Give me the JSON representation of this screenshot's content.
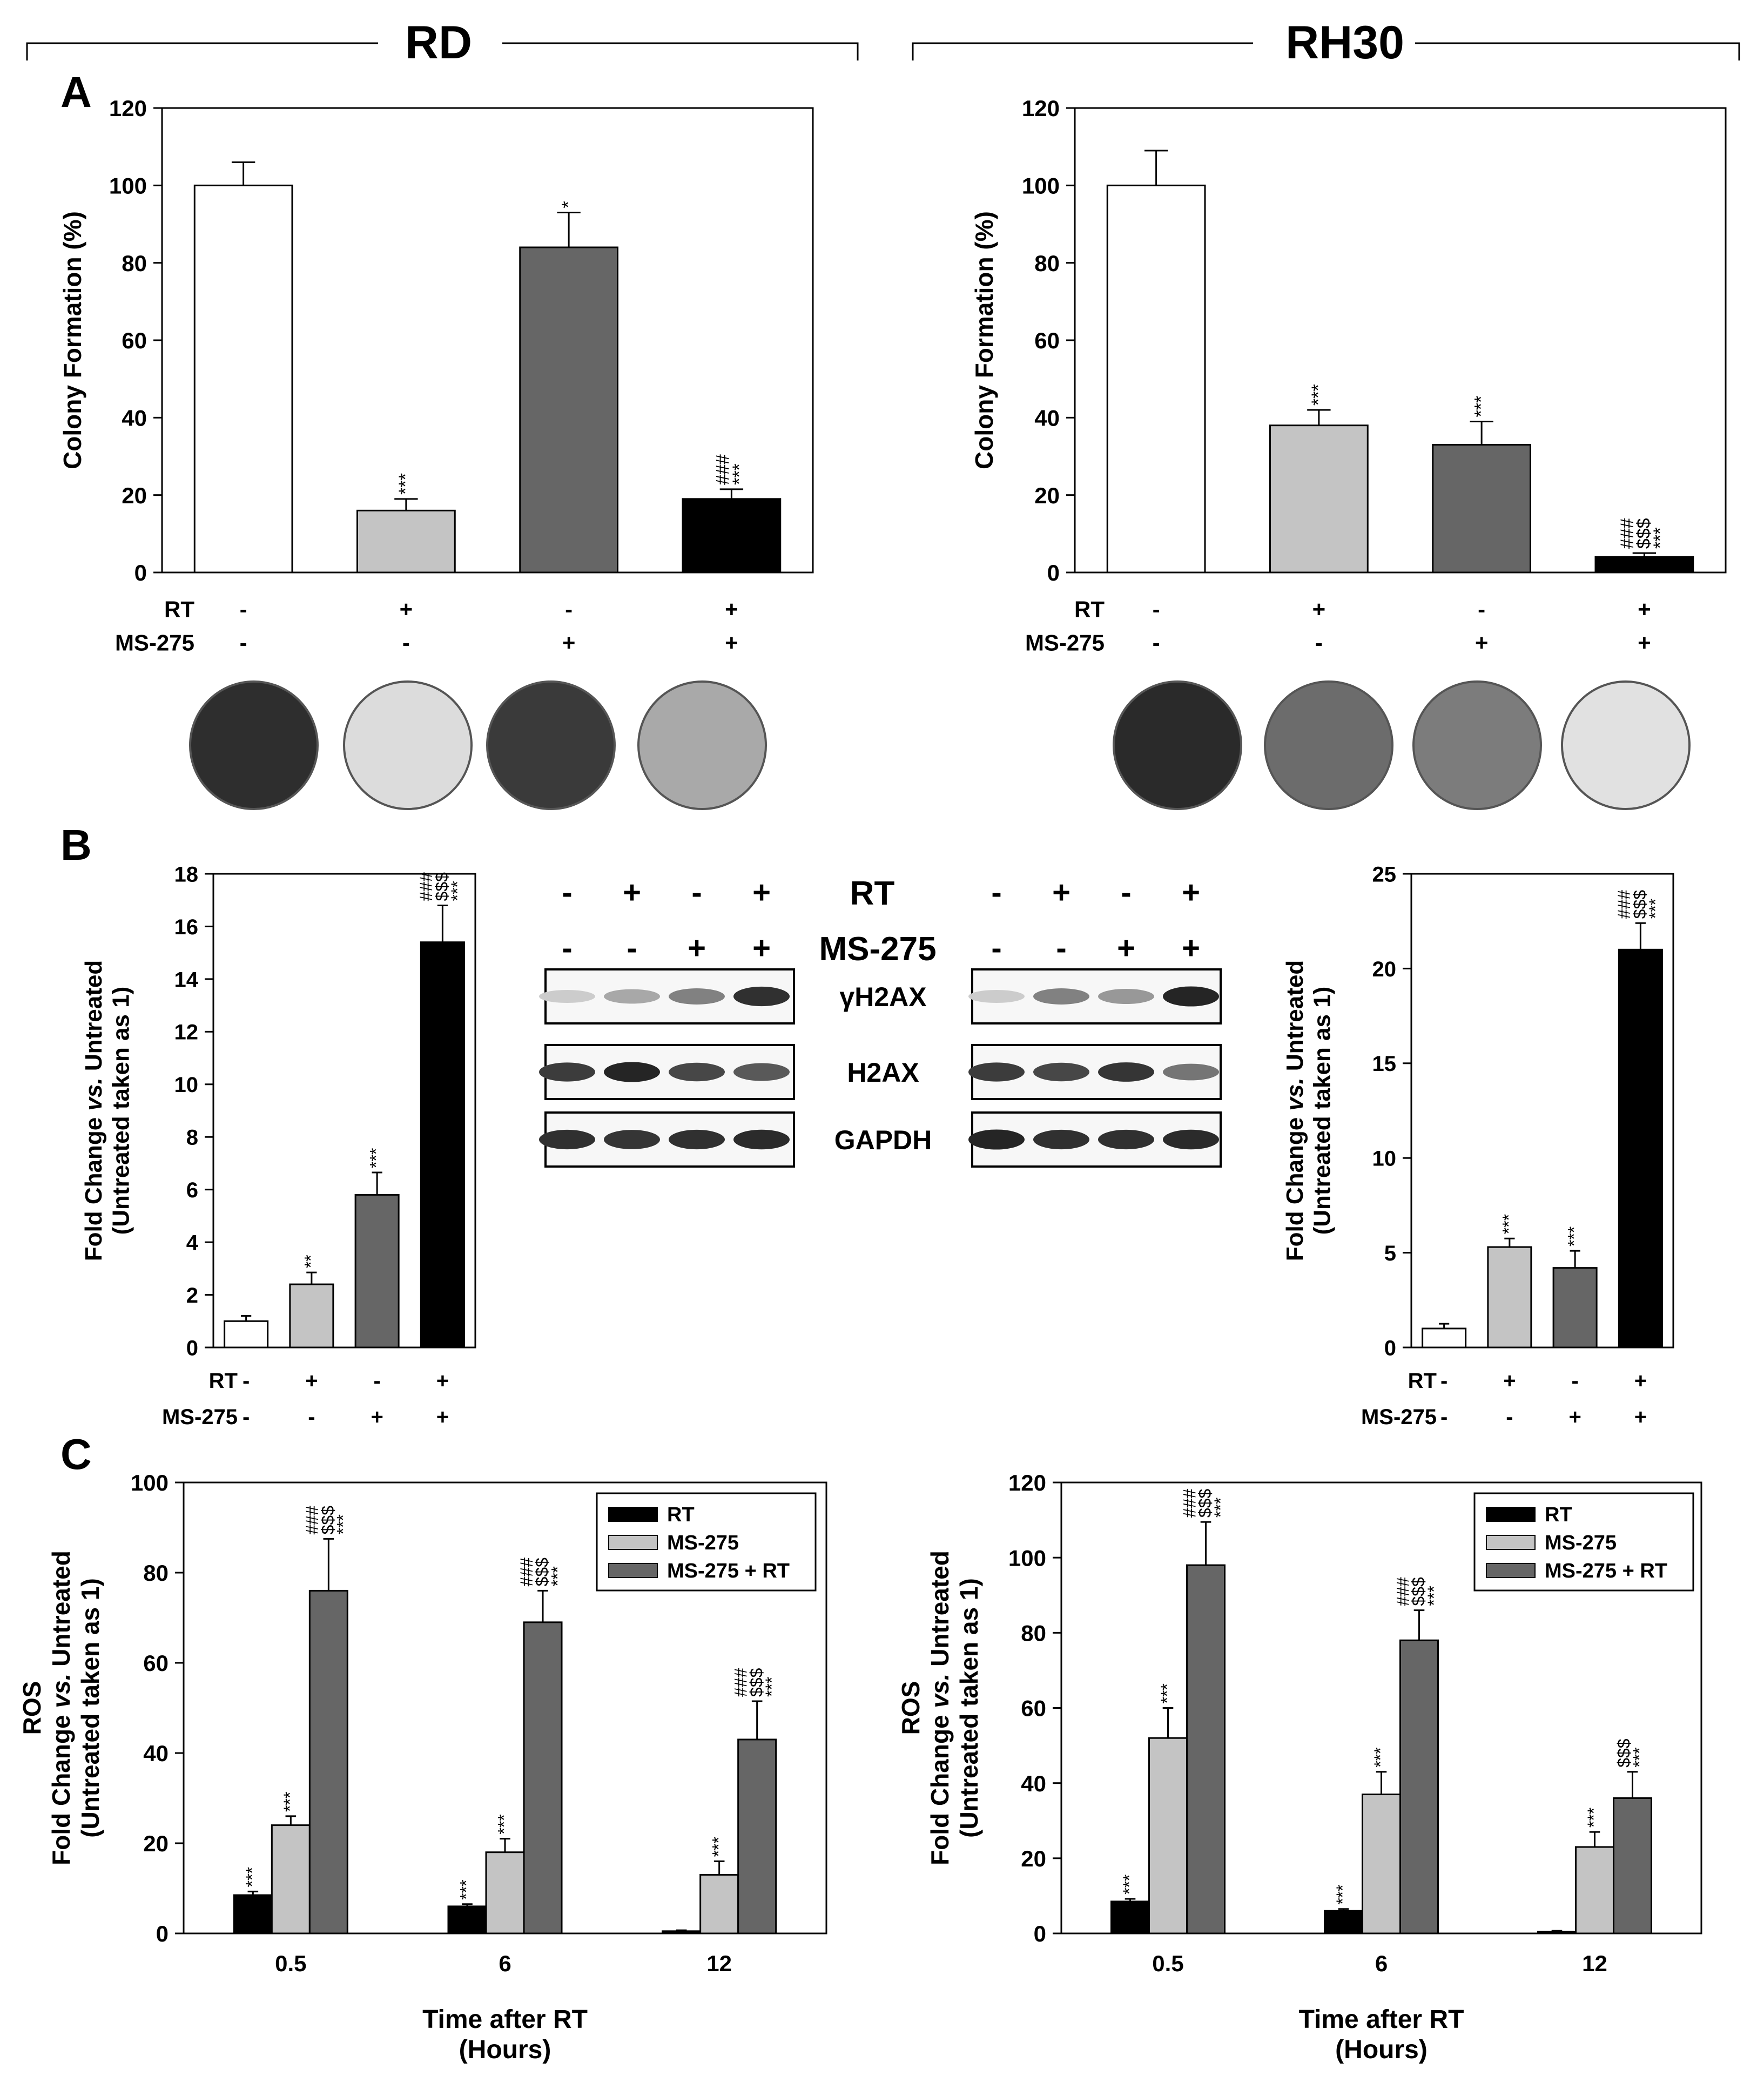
{
  "groups": {
    "left": "RD",
    "right": "RH30"
  },
  "panel_labels": {
    "a": "A",
    "b": "B",
    "c": "C"
  },
  "row_labels": {
    "rt": "RT",
    "ms": "MS-275"
  },
  "conditions": [
    {
      "rt": "-",
      "ms": "-"
    },
    {
      "rt": "+",
      "ms": "-"
    },
    {
      "rt": "-",
      "ms": "+"
    },
    {
      "rt": "+",
      "ms": "+"
    }
  ],
  "colors": {
    "untreated": "#ffffff",
    "rt": "#c4c4c4",
    "ms": "#666666",
    "combo": "#000000",
    "legend_rt": "#000000",
    "legend_ms": "#c4c4c4",
    "legend_combo": "#666666"
  },
  "blot": {
    "bands": [
      "γH2AX",
      "H2AX",
      "GAPDH"
    ],
    "signs_rt": [
      "-",
      "+",
      "-",
      "+"
    ],
    "signs_ms": [
      "-",
      "-",
      "+",
      "+"
    ],
    "label_rt": "RT",
    "label_ms": "MS-275"
  },
  "chart_data": [
    {
      "id": "A_RD",
      "type": "bar",
      "ylabel": "Colony Formation (%)",
      "ylim": [
        0,
        120
      ],
      "yticks": [
        0,
        20,
        40,
        60,
        80,
        100,
        120
      ],
      "values": [
        100,
        16,
        84,
        19
      ],
      "errors": [
        6,
        3,
        9,
        2.5
      ],
      "annotations": [
        "",
        "***",
        "*",
        "***\n###"
      ],
      "dish_shades": [
        "#2e2e2e",
        "#dcdcdc",
        "#3a3a3a",
        "#a9a9a9"
      ]
    },
    {
      "id": "A_RH30",
      "type": "bar",
      "ylabel": "Colony Formation (%)",
      "ylim": [
        0,
        120
      ],
      "yticks": [
        0,
        20,
        40,
        60,
        80,
        100,
        120
      ],
      "values": [
        100,
        38,
        33,
        4
      ],
      "errors": [
        9,
        4,
        6,
        1
      ],
      "annotations": [
        "",
        "***",
        "***",
        "***\n$$$\n###"
      ],
      "dish_shades": [
        "#2a2a2a",
        "#6c6c6c",
        "#7c7c7c",
        "#e1e1e1"
      ]
    },
    {
      "id": "B_RD",
      "type": "bar",
      "ylabel_lines": [
        "Fold Change vs. Untreated",
        "(Untreated taken as 1)"
      ],
      "ylim": [
        0,
        18
      ],
      "yticks": [
        0,
        2,
        4,
        6,
        8,
        10,
        12,
        14,
        16,
        18
      ],
      "values": [
        1,
        2.4,
        5.8,
        15.4
      ],
      "errors": [
        0.2,
        0.45,
        0.85,
        1.4
      ],
      "annotations": [
        "",
        "**",
        "***",
        "***\n$$$\n###"
      ]
    },
    {
      "id": "B_RH30",
      "type": "bar",
      "ylabel_lines": [
        "Fold Change vs. Untreated",
        "(Untreated taken as 1)"
      ],
      "ylim": [
        0,
        25
      ],
      "yticks": [
        0,
        5,
        10,
        15,
        20,
        25
      ],
      "values": [
        1,
        5.3,
        4.2,
        21
      ],
      "errors": [
        0.25,
        0.45,
        0.9,
        1.4
      ],
      "annotations": [
        "",
        "***",
        "***",
        "***\n$$$\n###"
      ]
    },
    {
      "id": "C_RD",
      "type": "bar",
      "ylabel_lines": [
        "ROS",
        "Fold Change vs. Untreated",
        "(Untreated taken as 1)"
      ],
      "xlabel_lines": [
        "Time after RT",
        "(Hours)"
      ],
      "categories": [
        "0.5",
        "6",
        "12"
      ],
      "ylim": [
        0,
        100
      ],
      "yticks": [
        0,
        20,
        40,
        60,
        80,
        100
      ],
      "series": [
        {
          "name": "RT",
          "values": [
            8.5,
            6,
            0.5
          ],
          "errors": [
            0.8,
            0.5,
            0.2
          ],
          "annotations": [
            "***",
            "***",
            ""
          ]
        },
        {
          "name": "MS-275",
          "values": [
            24,
            18,
            13
          ],
          "errors": [
            2,
            3,
            3
          ],
          "annotations": [
            "***",
            "***",
            "***"
          ]
        },
        {
          "name": "MS-275 + RT",
          "values": [
            76,
            69,
            43
          ],
          "errors": [
            11.5,
            7,
            8.5
          ],
          "annotations": [
            "***\n$$$\n###",
            "***\n$$$\n###",
            "***\n$$$\n###"
          ]
        }
      ],
      "legend": "top-right"
    },
    {
      "id": "C_RH30",
      "type": "bar",
      "ylabel_lines": [
        "ROS",
        "Fold Change vs. Untreated",
        "(Untreated taken as 1)"
      ],
      "xlabel_lines": [
        "Time after RT",
        "(Hours)"
      ],
      "categories": [
        "0.5",
        "6",
        "12"
      ],
      "ylim": [
        0,
        120
      ],
      "yticks": [
        0,
        20,
        40,
        60,
        80,
        100,
        120
      ],
      "series": [
        {
          "name": "RT",
          "values": [
            8.5,
            6,
            0.5
          ],
          "errors": [
            0.7,
            0.5,
            0.2
          ],
          "annotations": [
            "***",
            "***",
            ""
          ]
        },
        {
          "name": "MS-275",
          "values": [
            52,
            37,
            23
          ],
          "errors": [
            8,
            6,
            4
          ],
          "annotations": [
            "***",
            "***",
            "***"
          ]
        },
        {
          "name": "MS-275 + RT",
          "values": [
            98,
            78,
            36
          ],
          "errors": [
            11.5,
            8,
            7
          ],
          "annotations": [
            "***\n$$$\n###",
            "***\n$$$\n###",
            "***\n$$$"
          ]
        }
      ],
      "legend": "top-right"
    }
  ]
}
